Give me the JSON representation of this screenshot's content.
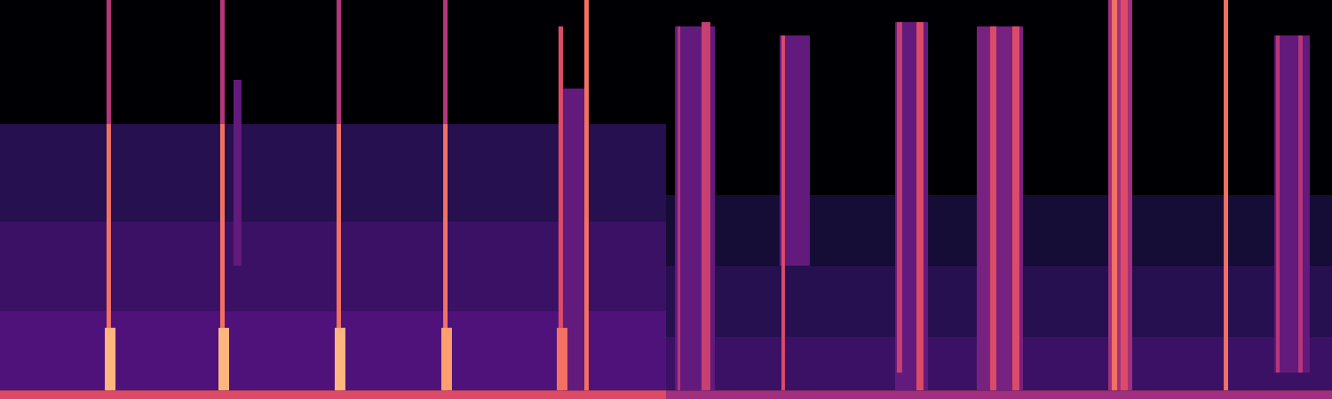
{
  "chart_data": {
    "type": "heatmap",
    "xlim": [
      0,
      10
    ],
    "ylim": [
      0,
      11
    ],
    "tick_labels": false,
    "crange": [
      0,
      1
    ],
    "cells": [
      {
        "x0": 0,
        "x1": 10,
        "y0": 0,
        "y1": 11,
        "value": 0
      },
      {
        "x0": 0,
        "x1": 5,
        "y0": 4.89,
        "y1": 7.58,
        "value": 0.15
      },
      {
        "x0": 0,
        "x1": 5,
        "y0": 2.44,
        "y1": 4.89,
        "value": 0.2
      },
      {
        "x0": 0,
        "x1": 5,
        "y0": 0.24,
        "y1": 2.44,
        "value": 0.25
      },
      {
        "x0": 5,
        "x1": 10,
        "y0": 3.67,
        "y1": 5.62,
        "value": 0.1
      },
      {
        "x0": 5,
        "x1": 10,
        "y0": 1.71,
        "y1": 3.67,
        "value": 0.15
      },
      {
        "x0": 5,
        "x1": 10,
        "y0": 0.24,
        "y1": 1.71,
        "value": 0.2
      },
      {
        "x0": 0,
        "x1": 5,
        "y0": 0,
        "y1": 0.24,
        "value": 0.6
      },
      {
        "x0": 5,
        "x1": 10,
        "y0": 0,
        "y1": 0.24,
        "value": 0.45
      },
      {
        "x0": 1.753,
        "x1": 1.813,
        "y0": 3.67,
        "y1": 8.8,
        "value": 0.3
      },
      {
        "x0": 4.227,
        "x1": 4.387,
        "y0": 0.24,
        "y1": 8.56,
        "value": 0.3
      },
      {
        "x0": 0.8,
        "x1": 0.833,
        "y0": 7.58,
        "y1": 11,
        "value": 0.5
      },
      {
        "x0": 0.8,
        "x1": 0.833,
        "y0": 0.24,
        "y1": 7.58,
        "value": 0.7
      },
      {
        "x0": 0.787,
        "x1": 0.867,
        "y0": 0.24,
        "y1": 1.96,
        "value": 0.85
      },
      {
        "x0": 1.653,
        "x1": 1.687,
        "y0": 7.58,
        "y1": 11,
        "value": 0.5
      },
      {
        "x0": 1.653,
        "x1": 1.687,
        "y0": 0.24,
        "y1": 7.58,
        "value": 0.7
      },
      {
        "x0": 1.64,
        "x1": 1.72,
        "y0": 0.24,
        "y1": 1.96,
        "value": 0.85
      },
      {
        "x0": 2.527,
        "x1": 2.56,
        "y0": 7.58,
        "y1": 11,
        "value": 0.5
      },
      {
        "x0": 2.527,
        "x1": 2.56,
        "y0": 0.24,
        "y1": 7.58,
        "value": 0.7
      },
      {
        "x0": 2.513,
        "x1": 2.593,
        "y0": 0.24,
        "y1": 1.96,
        "value": 0.85
      },
      {
        "x0": 3.327,
        "x1": 3.36,
        "y0": 7.58,
        "y1": 11,
        "value": 0.5
      },
      {
        "x0": 3.327,
        "x1": 3.36,
        "y0": 0.24,
        "y1": 7.58,
        "value": 0.7
      },
      {
        "x0": 3.313,
        "x1": 3.393,
        "y0": 0.24,
        "y1": 1.96,
        "value": 0.8
      },
      {
        "x0": 4.193,
        "x1": 4.227,
        "y0": 0.24,
        "y1": 10.27,
        "value": 0.6
      },
      {
        "x0": 4.18,
        "x1": 4.26,
        "y0": 0.24,
        "y1": 1.96,
        "value": 0.7
      },
      {
        "x0": 4.387,
        "x1": 4.42,
        "y0": 0.24,
        "y1": 11,
        "value": 0.7
      },
      {
        "x0": 5.067,
        "x1": 5.367,
        "y0": 0.24,
        "y1": 10.27,
        "value": 0.3
      },
      {
        "x0": 5.087,
        "x1": 5.107,
        "y0": 0.24,
        "y1": 10.27,
        "value": 0.5
      },
      {
        "x0": 5.267,
        "x1": 5.333,
        "y0": 0.24,
        "y1": 10.39,
        "value": 0.55
      },
      {
        "x0": 5.853,
        "x1": 6.08,
        "y0": 3.67,
        "y1": 10.02,
        "value": 0.3
      },
      {
        "x0": 5.867,
        "x1": 5.893,
        "y0": 0.24,
        "y1": 10.02,
        "value": 0.6
      },
      {
        "x0": 6.72,
        "x1": 6.967,
        "y0": 0.24,
        "y1": 10.39,
        "value": 0.3
      },
      {
        "x0": 6.733,
        "x1": 6.773,
        "y0": 0.73,
        "y1": 10.39,
        "value": 0.55
      },
      {
        "x0": 6.88,
        "x1": 6.933,
        "y0": 0.24,
        "y1": 10.39,
        "value": 0.6
      },
      {
        "x0": 7.333,
        "x1": 7.68,
        "y0": 0.24,
        "y1": 10.27,
        "value": 0.35
      },
      {
        "x0": 7.433,
        "x1": 7.48,
        "y0": 0.24,
        "y1": 10.27,
        "value": 0.6
      },
      {
        "x0": 7.6,
        "x1": 7.653,
        "y0": 0.24,
        "y1": 10.27,
        "value": 0.6
      },
      {
        "x0": 8.32,
        "x1": 8.5,
        "y0": 0.24,
        "y1": 11,
        "value": 0.45
      },
      {
        "x0": 8.347,
        "x1": 8.387,
        "y0": 0.24,
        "y1": 11,
        "value": 0.7
      },
      {
        "x0": 8.413,
        "x1": 8.467,
        "y0": 0.24,
        "y1": 11,
        "value": 0.6
      },
      {
        "x0": 9.187,
        "x1": 9.22,
        "y0": 0.24,
        "y1": 11,
        "value": 0.7
      },
      {
        "x0": 9.567,
        "x1": 9.833,
        "y0": 0.73,
        "y1": 10.02,
        "value": 0.3
      },
      {
        "x0": 9.58,
        "x1": 9.607,
        "y0": 0.73,
        "y1": 10.02,
        "value": 0.5
      },
      {
        "x0": 9.747,
        "x1": 9.78,
        "y0": 0.73,
        "y1": 10.02,
        "value": 0.5
      }
    ]
  }
}
